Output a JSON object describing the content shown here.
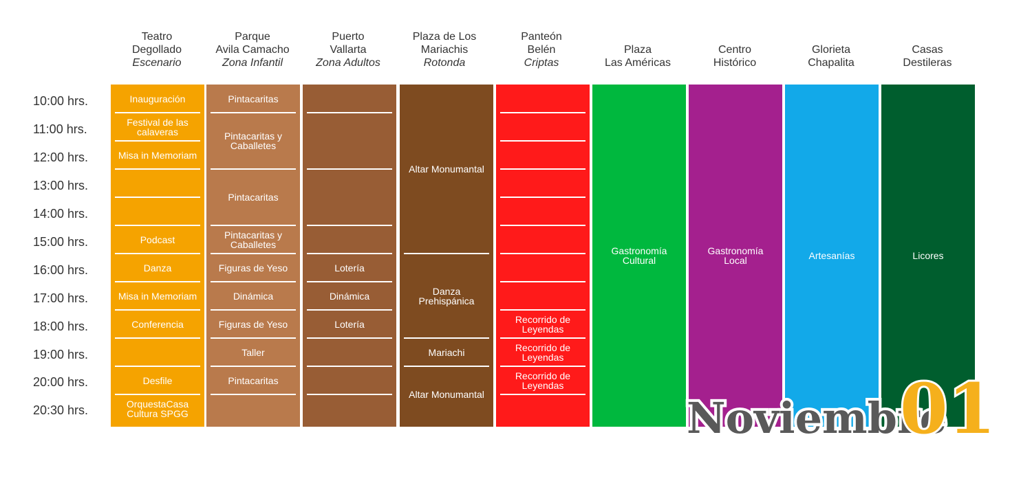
{
  "venues": [
    {
      "name": "Teatro Degollado",
      "line1": "Teatro",
      "line2": "Degollado",
      "sub": "Escenario",
      "color": "#F5A300"
    },
    {
      "name": "Parque Avila Camacho",
      "line1": "Parque",
      "line2": "Avila Camacho",
      "sub": "Zona Infantil",
      "color": "#B97A4C"
    },
    {
      "name": "Puerto Vallarta",
      "line1": "Puerto",
      "line2": "Vallarta",
      "sub": "Zona Adultos",
      "color": "#985D35"
    },
    {
      "name": "Plaza de Los Mariachis",
      "line1": "Plaza de Los",
      "line2": "Mariachis",
      "sub": "Rotonda",
      "color": "#7E4B20"
    },
    {
      "name": "Panteón Belén",
      "line1": "Panteón",
      "line2": "Belén",
      "sub": "Criptas",
      "color": "#FF1A1A"
    },
    {
      "name": "Plaza Las Américas",
      "line1": "Plaza",
      "line2": "Las Américas",
      "sub": "",
      "color": "#00B83E"
    },
    {
      "name": "Centro Histórico",
      "line1": "Centro",
      "line2": "Histórico",
      "sub": "",
      "color": "#A4208E"
    },
    {
      "name": "Glorieta Chapalita",
      "line1": "Glorieta",
      "line2": "Chapalita",
      "sub": "",
      "color": "#12A9E9"
    },
    {
      "name": "Casas Destileras",
      "line1": "Casas",
      "line2": "Destileras",
      "sub": "",
      "color": "#005E2E"
    }
  ],
  "times": [
    "10:00 hrs.",
    "11:00 hrs.",
    "12:00 hrs.",
    "13:00 hrs.",
    "14:00 hrs.",
    "15:00 hrs.",
    "16:00 hrs.",
    "17:00 hrs.",
    "18:00 hrs.",
    "19:00 hrs.",
    "20:00 hrs.",
    "20:30 hrs."
  ],
  "schedule": {
    "teatro": [
      "Inauguración",
      "Festival de las calaveras",
      "Misa in Memoriam",
      "",
      "",
      "Podcast",
      "Danza",
      "Misa in Memoriam",
      "Conferencia",
      "",
      "Desfile",
      "OrquestaCasa Cultura SPGG"
    ],
    "parque": [
      {
        "text": "Pintacaritas",
        "span": 1
      },
      {
        "text": "Pintacaritas y Caballetes",
        "span": 2
      },
      {
        "text": "Pintacaritas",
        "span": 2
      },
      {
        "text": "Pintacaritas y Caballetes",
        "span": 1
      },
      {
        "text": "Figuras de Yeso",
        "span": 1
      },
      {
        "text": "Dinámica",
        "span": 1
      },
      {
        "text": "Figuras de Yeso",
        "span": 1
      },
      {
        "text": "Taller",
        "span": 1
      },
      {
        "text": "Pintacaritas",
        "span": 1
      },
      {
        "text": "",
        "span": 1
      }
    ],
    "puerto": [
      {
        "text": "",
        "span": 1
      },
      {
        "text": "",
        "span": 2
      },
      {
        "text": "",
        "span": 2
      },
      {
        "text": "",
        "span": 1
      },
      {
        "text": "Lotería",
        "span": 1
      },
      {
        "text": "Dinámica",
        "span": 1
      },
      {
        "text": "Lotería",
        "span": 1
      },
      {
        "text": "",
        "span": 1
      },
      {
        "text": "",
        "span": 1
      },
      {
        "text": "",
        "span": 1
      }
    ],
    "plaza": [
      {
        "text": "Altar Monumantal",
        "span": 6
      },
      {
        "text": "Danza Prehispánica",
        "span": 3
      },
      {
        "text": "Mariachi",
        "span": 1
      },
      {
        "text": "Altar Monumantal",
        "span": 2
      }
    ],
    "panteon": [
      "",
      "",
      "",
      "",
      "",
      "",
      "",
      "",
      "Recorrido de Leyendas",
      "Recorrido de Leyendas",
      "Recorrido de Leyendas",
      ""
    ],
    "full": [
      "Gastronomía Cultural",
      "Gastronomía Local",
      "Artesanías",
      "Licores"
    ]
  },
  "logo": {
    "word": "Noviembre",
    "number": "01"
  }
}
